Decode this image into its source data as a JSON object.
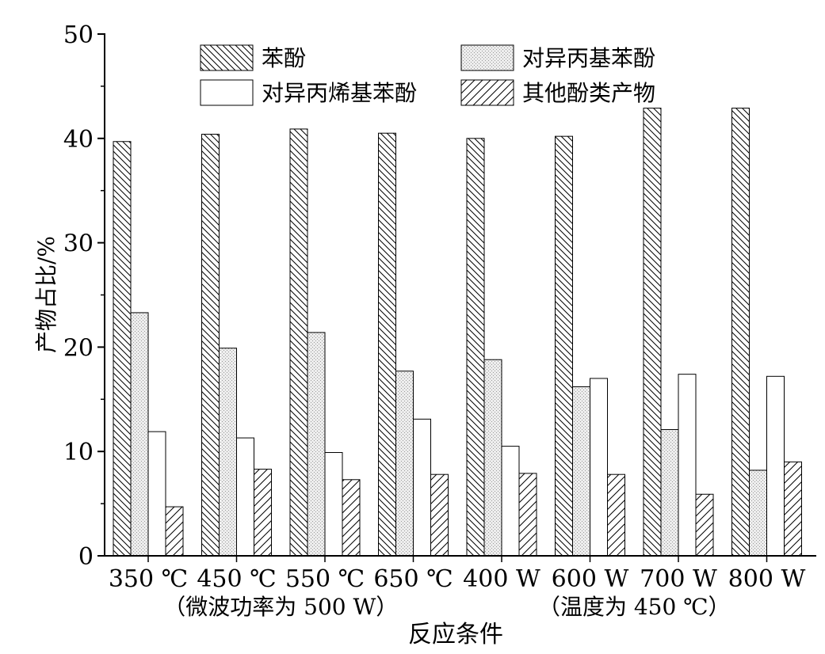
{
  "chart_data": {
    "type": "bar",
    "title": "",
    "xlabel": "反应条件",
    "ylabel": "产物占比/%",
    "ylim": [
      0,
      50
    ],
    "yticks": [
      0,
      10,
      20,
      30,
      40,
      50
    ],
    "categories": [
      "350 ℃",
      "450 ℃",
      "550 ℃",
      "650 ℃",
      "400 W",
      "600 W",
      "700 W",
      "800 W"
    ],
    "group_labels": [
      {
        "text": "（微波功率为 500 W）",
        "span": [
          0,
          3
        ]
      },
      {
        "text": "（温度为 450 ℃）",
        "span": [
          4,
          7
        ]
      }
    ],
    "series": [
      {
        "name": "苯酚",
        "pattern": "back-hatch",
        "values": [
          39.7,
          40.4,
          40.9,
          40.5,
          40.0,
          40.2,
          42.9,
          42.9
        ]
      },
      {
        "name": "对异丙基苯酚",
        "pattern": "dots",
        "values": [
          23.3,
          19.9,
          21.4,
          17.7,
          18.8,
          16.2,
          12.1,
          8.2
        ]
      },
      {
        "name": "对异丙烯基苯酚",
        "pattern": "blank",
        "values": [
          11.9,
          11.3,
          9.9,
          13.1,
          10.5,
          17.0,
          17.4,
          17.2
        ]
      },
      {
        "name": "其他酚类产物",
        "pattern": "forward-hatch",
        "values": [
          4.7,
          8.3,
          7.3,
          7.8,
          7.9,
          7.8,
          5.9,
          9.0
        ]
      }
    ],
    "legend_position": "top",
    "grid": false
  }
}
